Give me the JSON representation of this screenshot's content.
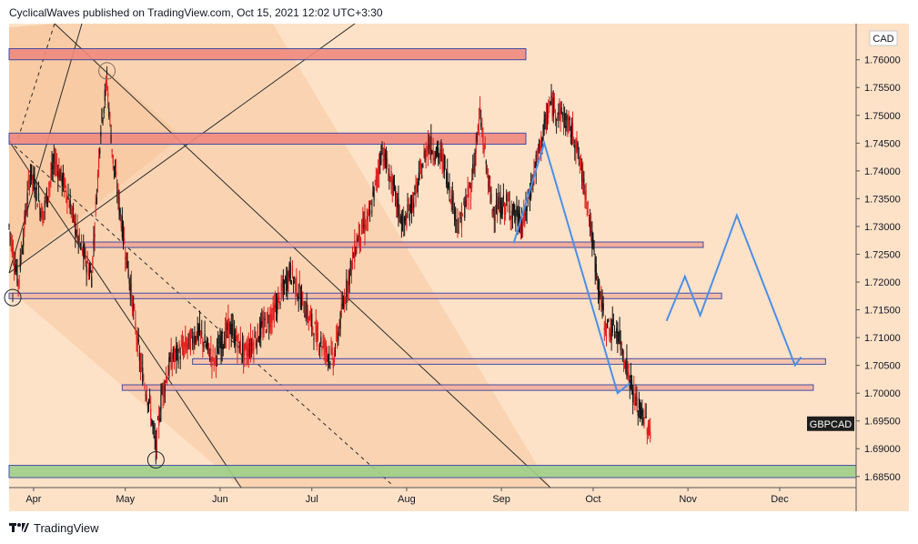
{
  "header": {
    "attribution": "CyclicalWaves published on TradingView.com, Oct 15, 2021 12:02 UTC+3:30"
  },
  "footer": {
    "brand": "TradingView",
    "logo_icon": "tradingview-logo-icon"
  },
  "colors": {
    "background": "#fde2c8",
    "candle_up": "#141414",
    "candle_down": "#e01e1e",
    "zone_fill": "#f08a80",
    "zone_border": "#2f3fa0",
    "support_fill": "#9fd08a",
    "projection": "#4b8fe8",
    "channel_line": "#2b2b2b"
  },
  "chart_data": {
    "type": "candlestick",
    "symbol": "GBPCAD",
    "currency": "CAD",
    "price_axis": {
      "min": 1.683,
      "max": 1.7665,
      "ticks": [
        "1.76000",
        "1.75500",
        "1.75000",
        "1.74500",
        "1.74000",
        "1.73500",
        "1.73000",
        "1.72500",
        "1.72000",
        "1.71500",
        "1.71000",
        "1.70500",
        "1.70000",
        "1.69500",
        "1.69000",
        "1.68500"
      ]
    },
    "time_axis": {
      "start": "2021-03-24",
      "end": "2021-12-26",
      "labels": [
        {
          "date": "2021-04-01",
          "label": "Apr"
        },
        {
          "date": "2021-05-01",
          "label": "May"
        },
        {
          "date": "2021-06-01",
          "label": "Jun"
        },
        {
          "date": "2021-07-01",
          "label": "Jul"
        },
        {
          "date": "2021-08-01",
          "label": "Aug"
        },
        {
          "date": "2021-09-01",
          "label": "Sep"
        },
        {
          "date": "2021-10-01",
          "label": "Oct"
        },
        {
          "date": "2021-11-01",
          "label": "Nov"
        },
        {
          "date": "2021-12-01",
          "label": "Dec"
        }
      ]
    },
    "last_price_label": "GBPCAD",
    "last_price": 1.6945,
    "series": [
      {
        "date": "2021-03-24",
        "close": 1.73
      },
      {
        "date": "2021-03-27",
        "close": 1.72
      },
      {
        "date": "2021-03-31",
        "close": 1.74
      },
      {
        "date": "2021-04-04",
        "close": 1.732
      },
      {
        "date": "2021-04-08",
        "close": 1.742
      },
      {
        "date": "2021-04-12",
        "close": 1.736
      },
      {
        "date": "2021-04-16",
        "close": 1.727
      },
      {
        "date": "2021-04-20",
        "close": 1.721
      },
      {
        "date": "2021-04-23",
        "close": 1.748
      },
      {
        "date": "2021-04-25",
        "close": 1.756
      },
      {
        "date": "2021-04-27",
        "close": 1.742
      },
      {
        "date": "2021-04-30",
        "close": 1.73
      },
      {
        "date": "2021-05-03",
        "close": 1.718
      },
      {
        "date": "2021-05-06",
        "close": 1.705
      },
      {
        "date": "2021-05-09",
        "close": 1.698
      },
      {
        "date": "2021-05-11",
        "close": 1.69
      },
      {
        "date": "2021-05-13",
        "close": 1.7
      },
      {
        "date": "2021-05-16",
        "close": 1.706
      },
      {
        "date": "2021-05-20",
        "close": 1.708
      },
      {
        "date": "2021-05-25",
        "close": 1.711
      },
      {
        "date": "2021-05-30",
        "close": 1.706
      },
      {
        "date": "2021-06-04",
        "close": 1.712
      },
      {
        "date": "2021-06-09",
        "close": 1.707
      },
      {
        "date": "2021-06-14",
        "close": 1.711
      },
      {
        "date": "2021-06-19",
        "close": 1.715
      },
      {
        "date": "2021-06-24",
        "close": 1.722
      },
      {
        "date": "2021-06-29",
        "close": 1.715
      },
      {
        "date": "2021-07-03",
        "close": 1.71
      },
      {
        "date": "2021-07-08",
        "close": 1.706
      },
      {
        "date": "2021-07-12",
        "close": 1.718
      },
      {
        "date": "2021-07-16",
        "close": 1.728
      },
      {
        "date": "2021-07-20",
        "close": 1.732
      },
      {
        "date": "2021-07-24",
        "close": 1.744
      },
      {
        "date": "2021-07-27",
        "close": 1.738
      },
      {
        "date": "2021-07-31",
        "close": 1.73
      },
      {
        "date": "2021-08-04",
        "close": 1.736
      },
      {
        "date": "2021-08-08",
        "close": 1.745
      },
      {
        "date": "2021-08-13",
        "close": 1.742
      },
      {
        "date": "2021-08-18",
        "close": 1.73
      },
      {
        "date": "2021-08-22",
        "close": 1.737
      },
      {
        "date": "2021-08-25",
        "close": 1.75
      },
      {
        "date": "2021-08-29",
        "close": 1.733
      },
      {
        "date": "2021-09-03",
        "close": 1.734
      },
      {
        "date": "2021-09-08",
        "close": 1.73
      },
      {
        "date": "2021-09-13",
        "close": 1.743
      },
      {
        "date": "2021-09-17",
        "close": 1.752
      },
      {
        "date": "2021-09-21",
        "close": 1.75
      },
      {
        "date": "2021-09-25",
        "close": 1.746
      },
      {
        "date": "2021-09-29",
        "close": 1.735
      },
      {
        "date": "2021-10-02",
        "close": 1.722
      },
      {
        "date": "2021-10-05",
        "close": 1.712
      },
      {
        "date": "2021-10-09",
        "close": 1.711
      },
      {
        "date": "2021-10-12",
        "close": 1.705
      },
      {
        "date": "2021-10-15",
        "close": 1.698
      },
      {
        "date": "2021-10-18",
        "close": 1.6955
      },
      {
        "date": "2021-10-20",
        "close": 1.692
      }
    ],
    "zones": [
      {
        "top": 1.762,
        "bottom": 1.76,
        "from": "2021-03-24",
        "to": "2021-09-09",
        "color": "#f08a80"
      },
      {
        "top": 1.7468,
        "bottom": 1.7448,
        "from": "2021-03-24",
        "to": "2021-09-09",
        "color": "#f08a80"
      },
      {
        "top": 1.7272,
        "bottom": 1.7264,
        "from": "2021-04-16",
        "to": "2021-11-06",
        "color": "#f0a898"
      },
      {
        "top": 1.718,
        "bottom": 1.717,
        "from": "2021-03-24",
        "to": "2021-11-12",
        "color": "#f2b8a4"
      },
      {
        "top": 1.7062,
        "bottom": 1.7052,
        "from": "2021-05-23",
        "to": "2021-12-16",
        "color": "#f6c2ac"
      },
      {
        "top": 1.7015,
        "bottom": 1.7005,
        "from": "2021-04-30",
        "to": "2021-12-12",
        "color": "#f2b0a0"
      },
      {
        "top": 1.687,
        "bottom": 1.6848,
        "from": "2021-03-24",
        "to": "2021-12-26",
        "color": "#9fd08a"
      }
    ],
    "projections": [
      {
        "name": "",
        "points": [
          {
            "date": "2021-09-05",
            "price": 1.727
          },
          {
            "date": "2021-09-15",
            "price": 1.745
          },
          {
            "date": "2021-10-09",
            "price": 1.7
          },
          {
            "date": "2021-10-13",
            "price": 1.7018
          }
        ]
      },
      {
        "name": "",
        "points": [
          {
            "date": "2021-10-25",
            "price": 1.713
          },
          {
            "date": "2021-10-31",
            "price": 1.721
          },
          {
            "date": "2021-11-05",
            "price": 1.714
          },
          {
            "date": "2021-11-17",
            "price": 1.732
          },
          {
            "date": "2021-12-06",
            "price": 1.705
          },
          {
            "date": "2021-12-08",
            "price": 1.7065
          }
        ]
      }
    ],
    "markers": [
      {
        "date": "2021-04-25",
        "price": 1.758,
        "kind": "circle-top"
      },
      {
        "date": "2021-05-11",
        "price": 1.688,
        "kind": "circle-bottom"
      },
      {
        "date": "2021-03-24",
        "price": 1.7172,
        "kind": "circle-left"
      }
    ]
  }
}
